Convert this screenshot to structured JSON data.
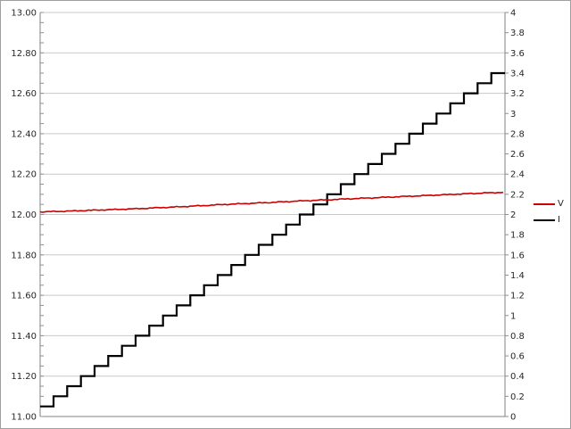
{
  "chart_data": {
    "type": "line",
    "title": "",
    "grid": {
      "horizontal": true,
      "vertical": false,
      "color": "#c9c9c9"
    },
    "axis_line_color": "#808080",
    "label_color": "#262626",
    "x_axis": {
      "labels_visible": false
    },
    "left_axis": {
      "min": 11.0,
      "max": 13.0,
      "major_step": 0.2,
      "minor_step": 0.05,
      "labels": [
        "13.00",
        "12.80",
        "12.60",
        "12.40",
        "12.20",
        "12.00",
        "11.80",
        "11.60",
        "11.40",
        "11.20",
        "11.00"
      ]
    },
    "right_axis": {
      "min": 0,
      "max": 4,
      "step": 0.2,
      "labels": [
        "4",
        "3.8",
        "3.6",
        "3.4",
        "3.2",
        "3",
        "2.8",
        "2.6",
        "2.4",
        "2.2",
        "2",
        "1.8",
        "1.6",
        "1.4",
        "1.2",
        "1",
        "0.8",
        "0.6",
        "0.4",
        "0.2",
        "0"
      ]
    },
    "series": [
      {
        "name": "V",
        "axis": "left",
        "color": "#cc0000",
        "points": [
          [
            0.0,
            12.013
          ],
          [
            0.05,
            12.016
          ],
          [
            0.1,
            12.02
          ],
          [
            0.15,
            12.024
          ],
          [
            0.2,
            12.028
          ],
          [
            0.25,
            12.033
          ],
          [
            0.3,
            12.038
          ],
          [
            0.35,
            12.044
          ],
          [
            0.4,
            12.05
          ],
          [
            0.45,
            12.055
          ],
          [
            0.5,
            12.06
          ],
          [
            0.55,
            12.066
          ],
          [
            0.6,
            12.071
          ],
          [
            0.65,
            12.076
          ],
          [
            0.7,
            12.081
          ],
          [
            0.75,
            12.086
          ],
          [
            0.8,
            12.091
          ],
          [
            0.85,
            12.096
          ],
          [
            0.9,
            12.101
          ],
          [
            0.95,
            12.106
          ],
          [
            1.0,
            12.11
          ]
        ]
      },
      {
        "name": "I",
        "axis": "right",
        "color": "#000000",
        "step_values": [
          0.1,
          0.2,
          0.3,
          0.4,
          0.5,
          0.6,
          0.7,
          0.8,
          0.9,
          1.0,
          1.1,
          1.2,
          1.3,
          1.4,
          1.5,
          1.6,
          1.7,
          1.8,
          1.9,
          2.0,
          2.1,
          2.2,
          2.3,
          2.4,
          2.5,
          2.6,
          2.7,
          2.8,
          2.9,
          3.0,
          3.1,
          3.2,
          3.3,
          3.4
        ]
      }
    ],
    "legend": {
      "position": "right",
      "entries": [
        {
          "label": "V",
          "color": "#cc0000"
        },
        {
          "label": "I",
          "color": "#000000"
        }
      ]
    }
  }
}
